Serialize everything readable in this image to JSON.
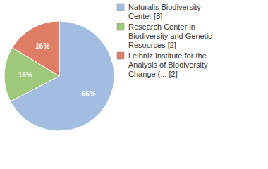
{
  "chart_data": {
    "type": "pie",
    "categories": [
      "Naturalis Biodiversity Center [8]",
      "Research Center in Biodiversity and Genetic Resources [2]",
      "Leibniz Institute for the Analysis of Biodiversity Change (... [2]"
    ],
    "values": [
      66,
      16,
      16
    ],
    "value_labels": [
      "66%",
      "16%",
      "16%"
    ],
    "colors": [
      "#a2bde0",
      "#a0c87a",
      "#e07d66"
    ],
    "data_labels": true,
    "legend": "upper right"
  }
}
